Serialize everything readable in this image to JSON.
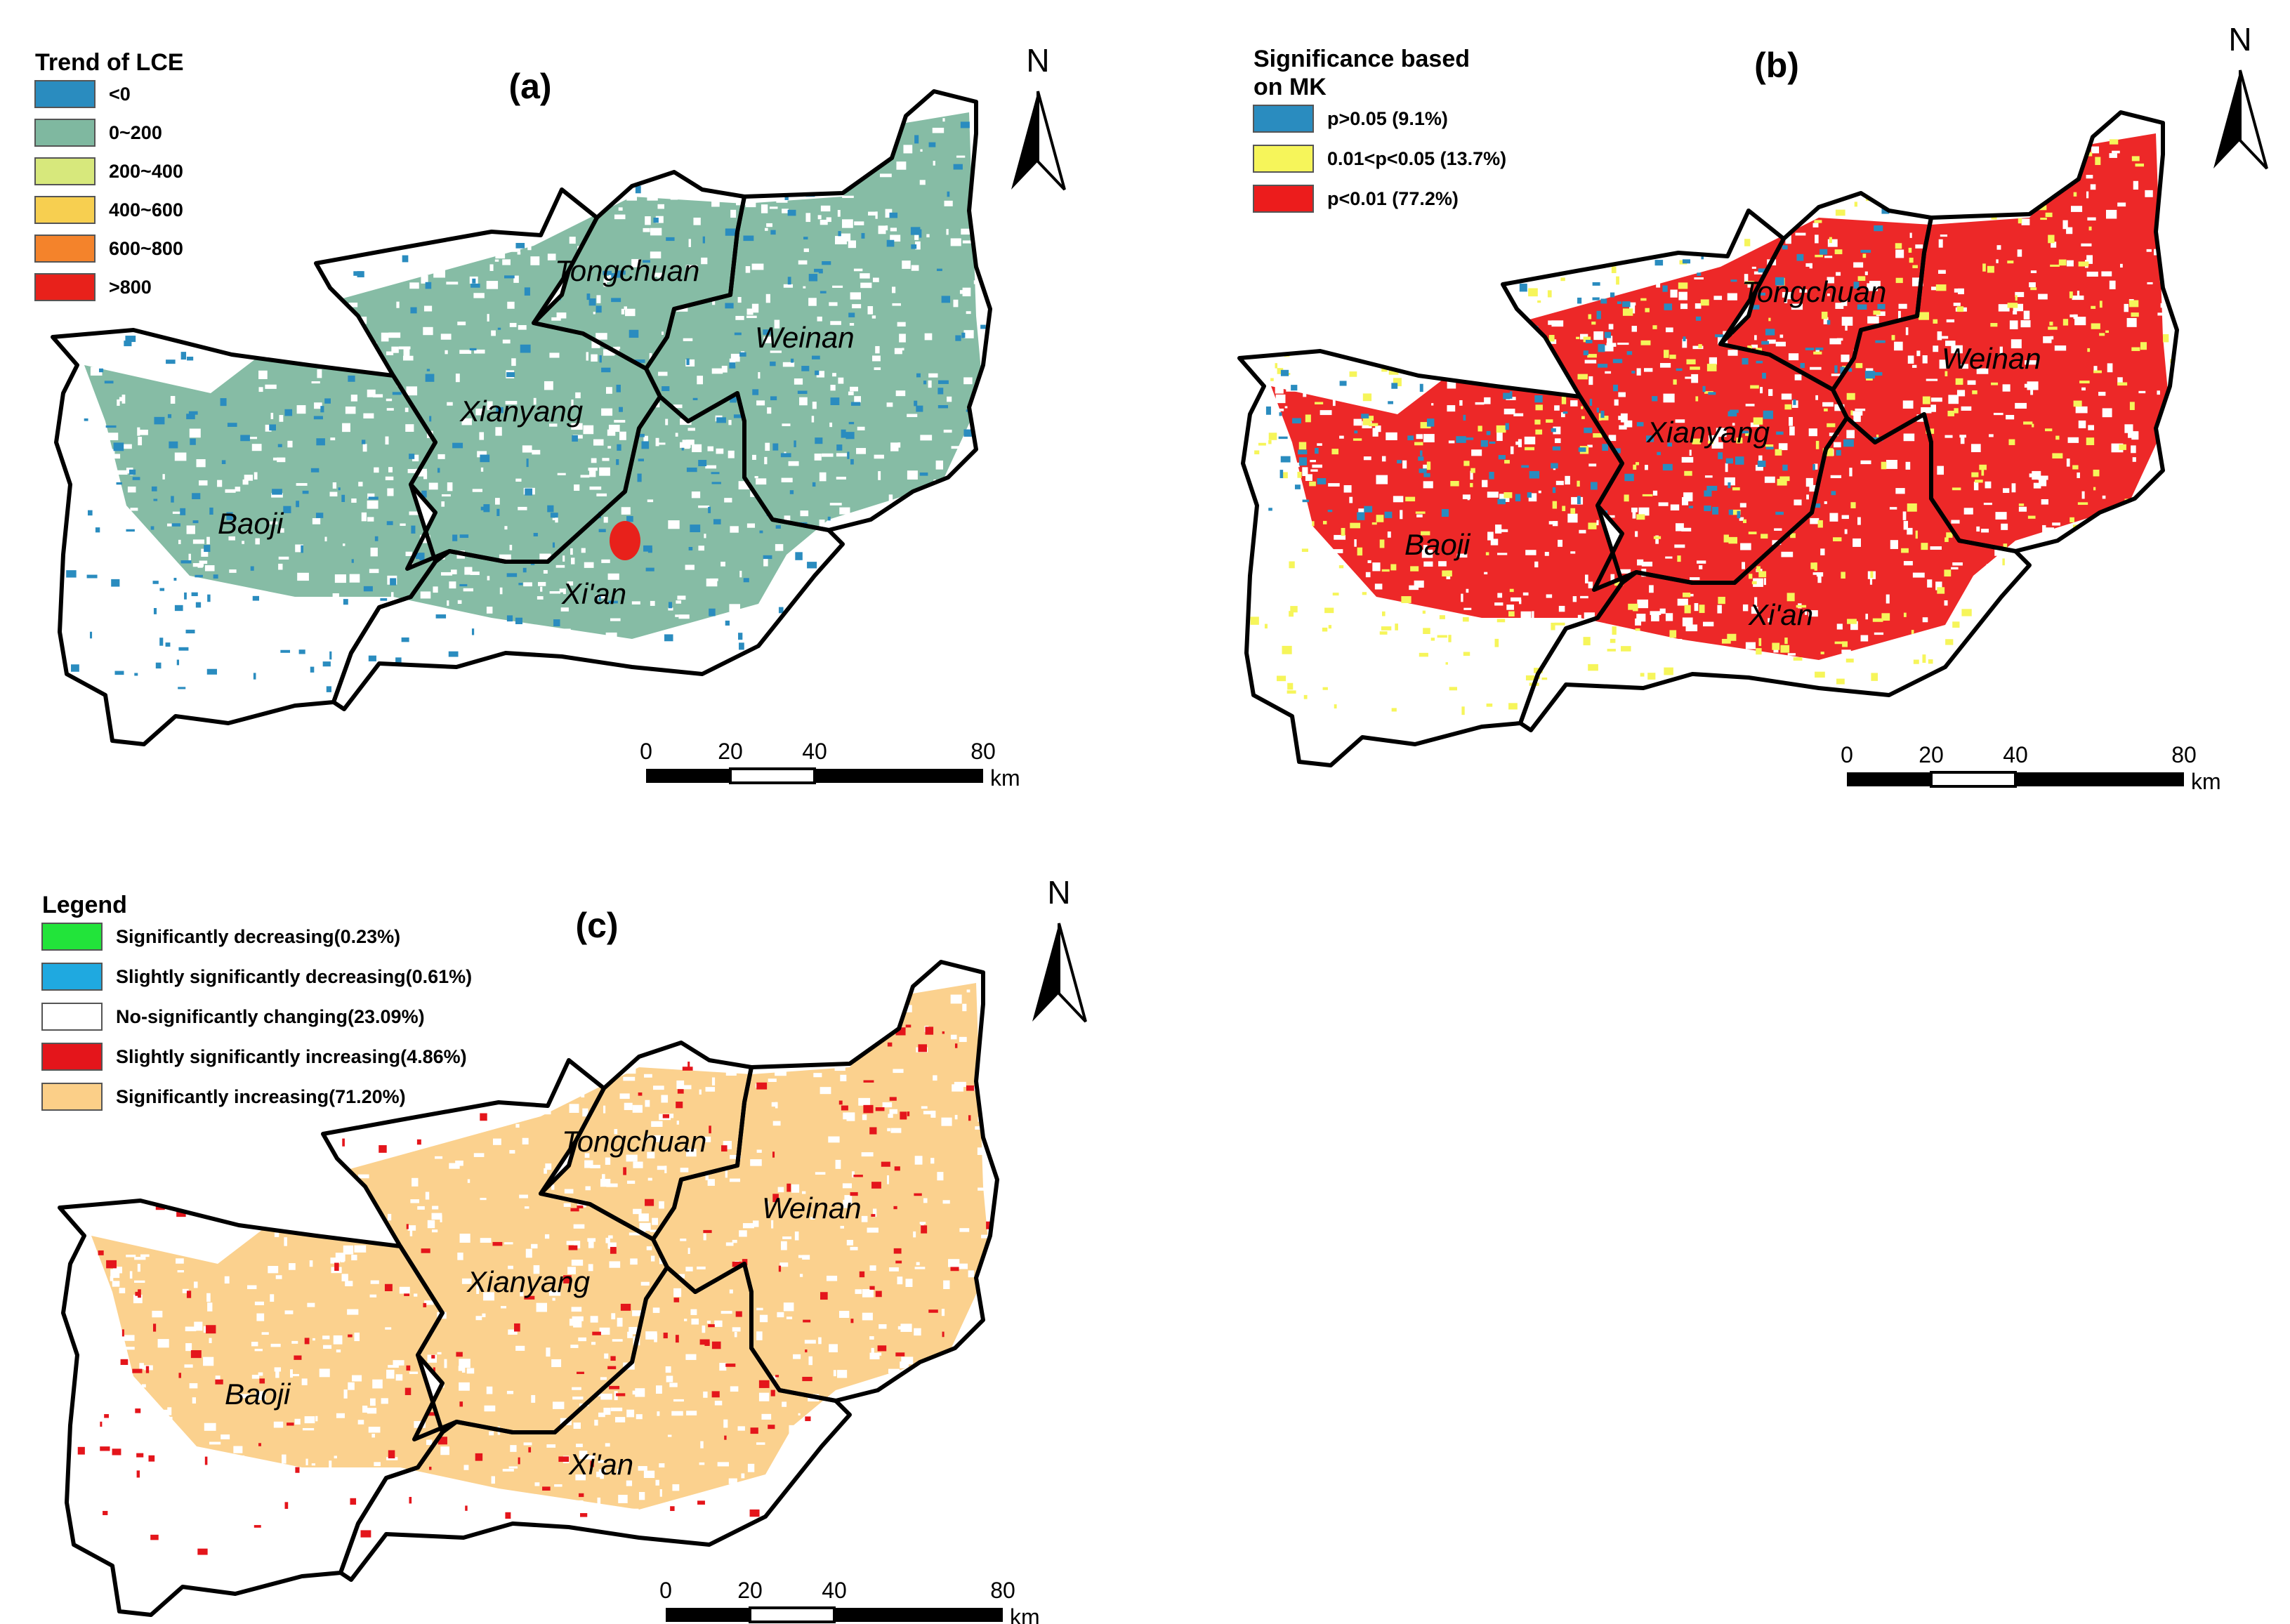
{
  "figure": {
    "panels": [
      {
        "id": "a",
        "label": "(a)",
        "legend": {
          "title": "Trend of LCE",
          "items": [
            {
              "label": "<0",
              "color": "#2a8cbf"
            },
            {
              "label": "0~200",
              "color": "#7fb8a0"
            },
            {
              "label": "200~400",
              "color": "#d7e87c"
            },
            {
              "label": "400~600",
              "color": "#f7cf50"
            },
            {
              "label": "600~800",
              "color": "#f4832b"
            },
            {
              "label": ">800",
              "color": "#e8211b"
            }
          ]
        },
        "fill": "#7fb8a0",
        "speckle": "#2a8cbf",
        "hotspot": "#e8211b"
      },
      {
        "id": "b",
        "label": "(b)",
        "legend": {
          "title_line1": "Significance based",
          "title_line2": "on MK",
          "items": [
            {
              "label": "p>0.05 (9.1%)",
              "color": "#2a8cbf"
            },
            {
              "label": "0.01<p<0.05 (13.7%)",
              "color": "#f6f55a"
            },
            {
              "label": "p<0.01 (77.2%)",
              "color": "#ec1c1c"
            }
          ]
        },
        "fill": "#ec1c1c",
        "speckle": "#f6f55a",
        "speckle2": "#2a8cbf"
      },
      {
        "id": "c",
        "label": "(c)",
        "legend": {
          "title": "Legend",
          "items": [
            {
              "label": "Significantly decreasing(0.23%)",
              "color": "#22e43a"
            },
            {
              "label": "Slightly significantly decreasing(0.61%)",
              "color": "#1fa9e0"
            },
            {
              "label": "No-significantly changing(23.09%)",
              "color": "#ffffff"
            },
            {
              "label": "Slightly significantly increasing(4.86%)",
              "color": "#e4151b"
            },
            {
              "label": "Significantly increasing(71.20%)",
              "color": "#fbcf88"
            }
          ]
        },
        "fill": "#fbcf88",
        "speckle": "#e4151b"
      }
    ],
    "regions": [
      "Baoji",
      "Xianyang",
      "Tongchuan",
      "Weinan",
      "Xi'an"
    ],
    "scale_bar": {
      "ticks": [
        "0",
        "20",
        "40",
        "80"
      ],
      "unit": "km"
    },
    "north": "N"
  }
}
